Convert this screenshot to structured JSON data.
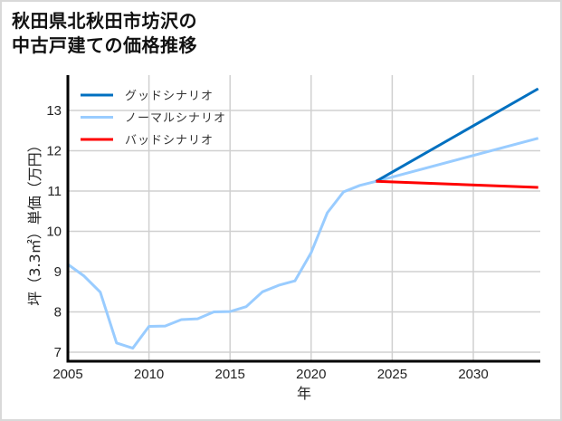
{
  "title_line1": "秋田県北秋田市坊沢の",
  "title_line2": "中古戸建ての価格推移",
  "chart_data": {
    "type": "line",
    "title": "秋田県北秋田市坊沢の中古戸建ての価格推移",
    "xlabel": "年",
    "ylabel": "坪（3.3㎡）単価（万円）",
    "xlim": [
      2005,
      2034
    ],
    "ylim": [
      6.75,
      13.9
    ],
    "x_ticks": [
      2005,
      2010,
      2015,
      2020,
      2025,
      2030
    ],
    "y_ticks": [
      7,
      8,
      9,
      10,
      11,
      12,
      13
    ],
    "grid": true,
    "legend_position": "upper left",
    "series": [
      {
        "name": "ノーマルシナリオ",
        "color": "#99ccff",
        "x": [
          2005,
          2006,
          2007,
          2008,
          2009,
          2010,
          2011,
          2012,
          2013,
          2014,
          2015,
          2016,
          2017,
          2018,
          2019,
          2020,
          2021,
          2022,
          2023,
          2024,
          2034
        ],
        "values": [
          9.18,
          8.89,
          8.49,
          7.23,
          7.1,
          7.64,
          7.65,
          7.81,
          7.83,
          8.0,
          8.01,
          8.13,
          8.5,
          8.66,
          8.77,
          9.47,
          10.46,
          10.98,
          11.14,
          11.24,
          12.31
        ]
      },
      {
        "name": "グッドシナリオ",
        "color": "#0070c0",
        "x": [
          2024,
          2034
        ],
        "values": [
          11.24,
          13.54
        ]
      },
      {
        "name": "バッドシナリオ",
        "color": "#ff0000",
        "x": [
          2024,
          2034
        ],
        "values": [
          11.24,
          11.09
        ]
      }
    ]
  },
  "legend": [
    {
      "label": "グッドシナリオ",
      "color": "#0070c0"
    },
    {
      "label": "ノーマルシナリオ",
      "color": "#99ccff"
    },
    {
      "label": "バッドシナリオ",
      "color": "#ff0000"
    }
  ]
}
